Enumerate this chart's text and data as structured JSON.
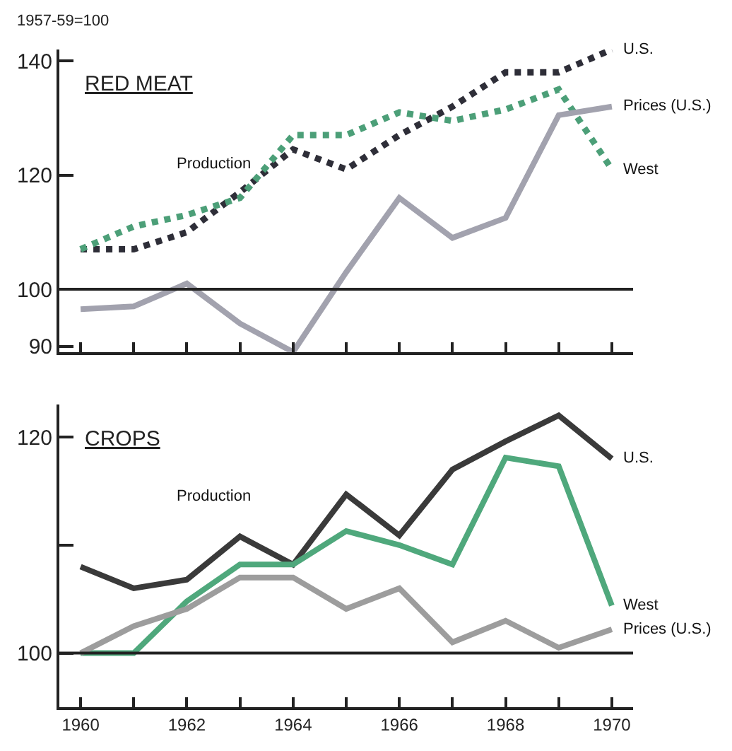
{
  "chart_data": [
    {
      "type": "line",
      "title": "RED MEAT",
      "ylabel": "1957-59=100",
      "x": [
        1960,
        1961,
        1962,
        1963,
        1964,
        1965,
        1966,
        1967,
        1968,
        1969,
        1970
      ],
      "series": [
        {
          "name": "U.S.",
          "color": "#2e2e38",
          "line_style": "dotted",
          "values": [
            107,
            107,
            110,
            117,
            124.5,
            121,
            127,
            132,
            138,
            138,
            142
          ]
        },
        {
          "name": "West",
          "color": "#4c9f78",
          "line_style": "dotted",
          "values": [
            107,
            111,
            113,
            116,
            127,
            127,
            131,
            129.5,
            131.5,
            135,
            121
          ]
        },
        {
          "name": "Prices (U.S.)",
          "color": "#a2a2ae",
          "line_style": "solid",
          "values": [
            96.5,
            97,
            101,
            94,
            89,
            103,
            116,
            109,
            112.5,
            130.5,
            132
          ]
        }
      ],
      "annotations": [
        "Production"
      ],
      "ref_lines": [
        {
          "axis": "y",
          "value": 100,
          "color": "#222222"
        }
      ],
      "xlim": [
        1959.6,
        1970.4
      ],
      "ylim": [
        89,
        142
      ],
      "xticks": [
        {
          "value": 1960,
          "label": null
        },
        {
          "value": 1961,
          "label": null
        },
        {
          "value": 1962,
          "label": null
        },
        {
          "value": 1963,
          "label": null
        },
        {
          "value": 1964,
          "label": null
        },
        {
          "value": 1965,
          "label": null
        },
        {
          "value": 1966,
          "label": null
        },
        {
          "value": 1967,
          "label": null
        },
        {
          "value": 1968,
          "label": null
        },
        {
          "value": 1969,
          "label": null
        },
        {
          "value": 1970,
          "label": null
        }
      ],
      "yticks": [
        90,
        100,
        120,
        140
      ],
      "tick_labels": "y",
      "grid": false,
      "legend": false,
      "marker": "none"
    },
    {
      "type": "line",
      "title": "CROPS",
      "x": [
        1960,
        1961,
        1962,
        1963,
        1964,
        1965,
        1966,
        1967,
        1968,
        1969,
        1970
      ],
      "series": [
        {
          "name": "U.S.",
          "color": "#3a3a3a",
          "line_style": "solid",
          "values": [
            108,
            106,
            106.8,
            110.8,
            108.2,
            114.7,
            110.9,
            117,
            119.6,
            122,
            118
          ]
        },
        {
          "name": "West",
          "color": "#4fa87c",
          "line_style": "solid",
          "values": [
            100,
            100,
            104.8,
            108.2,
            108.2,
            111.3,
            110,
            108.2,
            118.1,
            117.3,
            104.4
          ]
        },
        {
          "name": "Prices (U.S.)",
          "color": "#9d9d9d",
          "line_style": "solid",
          "values": [
            100,
            102.5,
            104.1,
            107,
            107,
            104.1,
            106,
            101,
            103,
            100.5,
            102.2
          ]
        }
      ],
      "annotations": [
        "Production"
      ],
      "ref_lines": [
        {
          "axis": "y",
          "value": 100,
          "color": "#222222"
        }
      ],
      "xlim": [
        1959.6,
        1970.4
      ],
      "ylim": [
        95,
        123
      ],
      "xticks": [
        1960,
        {
          "value": 1961,
          "label": null
        },
        1962,
        {
          "value": 1963,
          "label": null
        },
        1964,
        {
          "value": 1965,
          "label": null
        },
        1966,
        {
          "value": 1967,
          "label": null
        },
        1968,
        {
          "value": 1969,
          "label": null
        },
        1970
      ],
      "yticks": [
        100,
        {
          "value": 110,
          "label": null
        },
        120
      ],
      "grid": false,
      "legend": false,
      "marker": "none"
    }
  ]
}
